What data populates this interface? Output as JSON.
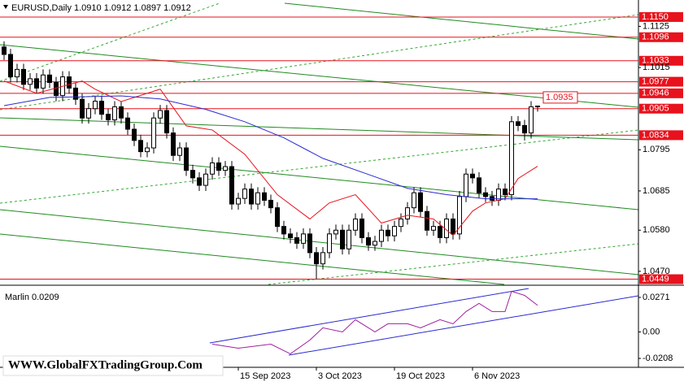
{
  "chart_data": [
    {
      "type": "candlestick",
      "title": "EURUSD,Daily 1.0910 1.0912 1.0897 1.0912",
      "categories": [
        null,
        null,
        null,
        null,
        null,
        null,
        null,
        null,
        null,
        null,
        null,
        null,
        null,
        null,
        null,
        null,
        null,
        null,
        null,
        null,
        null,
        null,
        null,
        null,
        null,
        null,
        null,
        null,
        null,
        null,
        null,
        null,
        null,
        null,
        null,
        null,
        "15 Sep 2023",
        null,
        null,
        null,
        null,
        null,
        null,
        null,
        null,
        null,
        null,
        null,
        "3 Oct 2023",
        null,
        null,
        null,
        null,
        null,
        null,
        null,
        null,
        null,
        null,
        null,
        "19 Oct 2023",
        null,
        null,
        null,
        null,
        null,
        null,
        null,
        null,
        null,
        null,
        null,
        "6 Nov 2023",
        null,
        null,
        null,
        null,
        null,
        null,
        null,
        null,
        null,
        null
      ],
      "open": [
        1.107,
        1.105,
        1.099,
        1.101,
        1.097,
        1.0985,
        1.096,
        1.0995,
        1.0975,
        1.094,
        1.099,
        1.096,
        1.093,
        1.088,
        1.0905,
        1.0925,
        1.089,
        1.0875,
        1.091,
        1.088,
        1.085,
        1.082,
        1.079,
        1.08,
        1.088,
        1.09,
        1.084,
        1.078,
        1.08,
        1.074,
        1.072,
        1.07,
        1.073,
        1.076,
        1.074,
        1.075,
        1.065,
        1.0665,
        1.069,
        1.065,
        1.068,
        1.066,
        1.064,
        1.059,
        1.057,
        1.056,
        1.0545,
        1.057,
        1.052,
        1.049,
        1.052,
        1.057,
        1.058,
        1.053,
        1.058,
        1.061,
        1.056,
        1.054,
        1.055,
        1.058,
        1.0565,
        1.059,
        1.061,
        1.064,
        1.068,
        1.063,
        1.058,
        1.059,
        1.056,
        1.061,
        1.057,
        1.067,
        1.073,
        1.072,
        1.068,
        1.067,
        1.066,
        1.069,
        1.0675,
        1.087,
        1.086,
        1.084,
        1.091
      ],
      "high": [
        1.1085,
        1.1065,
        1.1025,
        1.1025,
        1.1,
        1.1,
        1.101,
        1.101,
        1.099,
        1.1005,
        1.1005,
        1.0975,
        1.0945,
        1.092,
        1.094,
        1.094,
        1.0905,
        1.0925,
        1.0925,
        1.0895,
        1.0865,
        1.0835,
        1.0815,
        1.0895,
        1.0915,
        1.0915,
        1.0855,
        1.0815,
        1.0815,
        1.0755,
        1.0735,
        1.0745,
        1.0775,
        1.0775,
        1.0765,
        1.0765,
        1.068,
        1.0705,
        1.0705,
        1.0695,
        1.0695,
        1.0675,
        1.0655,
        1.0605,
        1.0585,
        1.0575,
        1.0585,
        1.0585,
        1.0535,
        1.0535,
        1.0585,
        1.0595,
        1.0595,
        1.0595,
        1.0625,
        1.0625,
        1.0575,
        1.0565,
        1.0595,
        1.0595,
        1.0605,
        1.0625,
        1.0655,
        1.0695,
        1.0695,
        1.0645,
        1.0605,
        1.0605,
        1.0625,
        1.0625,
        1.0685,
        1.0745,
        1.0745,
        1.0735,
        1.0695,
        1.0685,
        1.0705,
        1.0705,
        1.0885,
        1.0885,
        1.0875,
        1.0925,
        1.0912
      ],
      "low": [
        1.1035,
        1.0975,
        1.0975,
        1.0955,
        1.0955,
        1.0945,
        1.0945,
        1.096,
        1.0925,
        1.0925,
        1.0945,
        1.0915,
        1.0865,
        1.0865,
        1.089,
        1.0875,
        1.086,
        1.086,
        1.0865,
        1.0835,
        1.0805,
        1.0775,
        1.0775,
        1.0785,
        1.0865,
        1.0825,
        1.0765,
        1.0765,
        1.0725,
        1.0705,
        1.0685,
        1.0685,
        1.0715,
        1.0725,
        1.0725,
        1.0635,
        1.0635,
        1.065,
        1.0635,
        1.0635,
        1.0645,
        1.0625,
        1.0575,
        1.0555,
        1.0545,
        1.053,
        1.053,
        1.0505,
        1.0449,
        1.0475,
        1.0505,
        1.0555,
        1.0515,
        1.0515,
        1.0565,
        1.0545,
        1.0525,
        1.0525,
        1.0535,
        1.055,
        1.055,
        1.0575,
        1.0595,
        1.0625,
        1.0615,
        1.0565,
        1.0565,
        1.0545,
        1.0545,
        1.0555,
        1.0555,
        1.0655,
        1.0705,
        1.0665,
        1.0655,
        1.0645,
        1.0645,
        1.066,
        1.066,
        1.0845,
        1.082,
        1.0825,
        1.0897
      ],
      "close": [
        1.105,
        1.099,
        1.101,
        1.097,
        1.0985,
        1.096,
        1.0995,
        1.0975,
        1.094,
        1.099,
        1.096,
        1.093,
        1.088,
        1.0905,
        1.0925,
        1.089,
        1.0875,
        1.091,
        1.088,
        1.085,
        1.082,
        1.079,
        1.08,
        1.088,
        1.09,
        1.084,
        1.078,
        1.08,
        1.074,
        1.072,
        1.07,
        1.073,
        1.076,
        1.074,
        1.075,
        1.065,
        1.0665,
        1.069,
        1.065,
        1.068,
        1.066,
        1.064,
        1.059,
        1.057,
        1.056,
        1.0545,
        1.057,
        1.052,
        1.049,
        1.052,
        1.057,
        1.058,
        1.053,
        1.058,
        1.061,
        1.056,
        1.054,
        1.055,
        1.058,
        1.0565,
        1.059,
        1.061,
        1.064,
        1.068,
        1.063,
        1.058,
        1.059,
        1.056,
        1.061,
        1.057,
        1.067,
        1.073,
        1.072,
        1.068,
        1.067,
        1.066,
        1.069,
        1.0675,
        1.087,
        1.086,
        1.084,
        1.091,
        1.0912
      ],
      "lines": [
        {
          "color": "#e8121c",
          "x": [
            0,
            5,
            12,
            14,
            18,
            24,
            28,
            32,
            37,
            42,
            47,
            50,
            54,
            58,
            62,
            66,
            69,
            72,
            74,
            77,
            79,
            82
          ],
          "values": [
            1.0979,
            1.0946,
            1.0979,
            1.0957,
            1.0924,
            1.0957,
            1.0859,
            1.0848,
            1.0783,
            1.0675,
            1.061,
            1.0653,
            1.0675,
            1.0599,
            1.062,
            1.061,
            1.0566,
            1.0631,
            1.0653,
            1.0664,
            1.0718,
            1.0751
          ]
        },
        {
          "color": "#2a2ad0",
          "x": [
            0,
            7,
            18,
            24,
            31,
            37,
            43,
            49,
            56,
            62,
            68,
            74,
            82
          ],
          "values": [
            1.0913,
            1.0935,
            1.0939,
            1.0931,
            1.0903,
            1.087,
            1.0827,
            1.0772,
            1.0729,
            1.0692,
            1.0675,
            1.0664,
            1.0664
          ]
        }
      ],
      "levels": [
        {
          "value": 1.115,
          "label": "1.1150"
        },
        {
          "value": 1.1096,
          "label": "1.1096"
        },
        {
          "value": 1.1033,
          "label": "1.1033"
        },
        {
          "value": 1.0977,
          "label": "1.0977"
        },
        {
          "value": 1.0946,
          "label": "1.0946"
        },
        {
          "value": 1.0905,
          "label": "1.0905"
        },
        {
          "value": 1.0834,
          "label": "1.0834"
        },
        {
          "value": 1.0449,
          "label": "1.0449"
        }
      ],
      "level_color": "#e8121c",
      "price_box": 1.0935,
      "ylim": [
        1.0435,
        1.1189
      ],
      "yticks": [
        1.1125,
        {
          "value": 1.1015,
          "label": "1.1015"
        },
        {
          "value": 1.0795,
          "label": "1.0795"
        },
        {
          "value": 1.0685,
          "label": "1.0685"
        },
        {
          "value": 1.058,
          "label": "1.0580"
        },
        {
          "value": 1.047,
          "label": "1.0470"
        }
      ]
    },
    {
      "type": "line",
      "title": "Marlin 0.0209",
      "color": "#a020a0",
      "x": [
        32,
        36,
        41,
        44,
        47,
        49,
        52,
        54,
        57,
        59,
        62,
        64,
        67,
        69,
        71,
        73,
        75,
        77,
        78,
        80,
        82
      ],
      "values": [
        -0.0096,
        -0.0128,
        -0.0096,
        -0.0172,
        -0.0064,
        0.0032,
        0,
        0.0096,
        0,
        0.0064,
        0.0064,
        0.0032,
        0.0096,
        0.0064,
        0.016,
        0.0224,
        0.016,
        0.016,
        0.0319,
        0.0287,
        0.0209
      ],
      "ylim": [
        -0.0278,
        0.0354
      ],
      "yticks": [
        0.0271,
        {
          "value": 0,
          "label": "0.00"
        },
        -0.0208
      ]
    }
  ],
  "watermark": "WWW.GlobalFXTradingGroup.Com"
}
